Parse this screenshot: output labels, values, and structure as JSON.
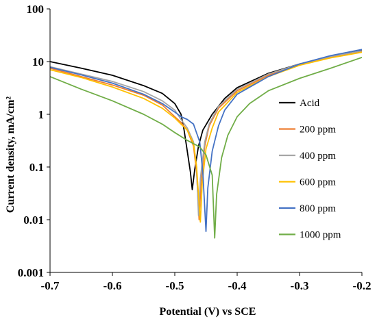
{
  "chart_data": {
    "type": "line",
    "title": "",
    "xlabel": "Potential (V) vs SCE",
    "ylabel": "Current  density, mA/cm²",
    "x_scale": "linear",
    "y_scale": "log",
    "xlim": [
      -0.7,
      -0.2
    ],
    "ylim": [
      0.001,
      100
    ],
    "x_ticks": [
      "-0.7",
      "-0.6",
      "-0.5",
      "-0.4",
      "-0.3",
      "-0.2"
    ],
    "y_ticks": [
      "0.001",
      "0.01",
      "0.1",
      "1",
      "10",
      "100"
    ],
    "grid": false,
    "legend_position": "right",
    "series": [
      {
        "name": "Acid",
        "color": "#000000",
        "points": [
          [
            -0.7,
            10
          ],
          [
            -0.65,
            7.5
          ],
          [
            -0.6,
            5.5
          ],
          [
            -0.55,
            3.5
          ],
          [
            -0.52,
            2.5
          ],
          [
            -0.5,
            1.6
          ],
          [
            -0.49,
            1.0
          ],
          [
            -0.485,
            0.5
          ],
          [
            -0.48,
            0.2
          ],
          [
            -0.475,
            0.08
          ],
          [
            -0.472,
            0.037
          ],
          [
            -0.468,
            0.09
          ],
          [
            -0.462,
            0.25
          ],
          [
            -0.455,
            0.5
          ],
          [
            -0.44,
            1.0
          ],
          [
            -0.42,
            2.0
          ],
          [
            -0.4,
            3.2
          ],
          [
            -0.35,
            6.0
          ],
          [
            -0.3,
            9.0
          ],
          [
            -0.25,
            12.5
          ],
          [
            -0.2,
            16.5
          ]
        ]
      },
      {
        "name": "200 ppm",
        "color": "#ed7d31",
        "points": [
          [
            -0.7,
            7.5
          ],
          [
            -0.65,
            5.2
          ],
          [
            -0.6,
            3.6
          ],
          [
            -0.55,
            2.3
          ],
          [
            -0.52,
            1.5
          ],
          [
            -0.5,
            0.9
          ],
          [
            -0.49,
            0.7
          ],
          [
            -0.48,
            0.5
          ],
          [
            -0.47,
            0.25
          ],
          [
            -0.465,
            0.08
          ],
          [
            -0.461,
            0.01
          ],
          [
            -0.458,
            0.05
          ],
          [
            -0.452,
            0.25
          ],
          [
            -0.445,
            0.6
          ],
          [
            -0.43,
            1.3
          ],
          [
            -0.4,
            2.8
          ],
          [
            -0.35,
            5.5
          ],
          [
            -0.3,
            8.8
          ],
          [
            -0.25,
            12
          ],
          [
            -0.2,
            15.5
          ]
        ]
      },
      {
        "name": "400 ppm",
        "color": "#a5a5a5",
        "points": [
          [
            -0.7,
            8
          ],
          [
            -0.65,
            5.8
          ],
          [
            -0.6,
            4.2
          ],
          [
            -0.55,
            2.7
          ],
          [
            -0.52,
            1.8
          ],
          [
            -0.5,
            1.2
          ],
          [
            -0.49,
            0.8
          ],
          [
            -0.48,
            0.55
          ],
          [
            -0.47,
            0.3
          ],
          [
            -0.465,
            0.1
          ],
          [
            -0.462,
            0.012
          ],
          [
            -0.459,
            0.06
          ],
          [
            -0.452,
            0.3
          ],
          [
            -0.445,
            0.65
          ],
          [
            -0.43,
            1.4
          ],
          [
            -0.4,
            3.0
          ],
          [
            -0.35,
            5.8
          ],
          [
            -0.3,
            9.0
          ],
          [
            -0.25,
            12.5
          ],
          [
            -0.2,
            16
          ]
        ]
      },
      {
        "name": "600 ppm",
        "color": "#ffc000",
        "points": [
          [
            -0.7,
            7
          ],
          [
            -0.65,
            5.0
          ],
          [
            -0.6,
            3.3
          ],
          [
            -0.55,
            2.0
          ],
          [
            -0.52,
            1.3
          ],
          [
            -0.5,
            0.85
          ],
          [
            -0.49,
            0.65
          ],
          [
            -0.48,
            0.5
          ],
          [
            -0.47,
            0.28
          ],
          [
            -0.465,
            0.1
          ],
          [
            -0.459,
            0.009
          ],
          [
            -0.456,
            0.05
          ],
          [
            -0.45,
            0.22
          ],
          [
            -0.44,
            0.55
          ],
          [
            -0.43,
            1.1
          ],
          [
            -0.4,
            2.6
          ],
          [
            -0.35,
            5.2
          ],
          [
            -0.3,
            8.5
          ],
          [
            -0.25,
            11.8
          ],
          [
            -0.2,
            15
          ]
        ]
      },
      {
        "name": "800 ppm",
        "color": "#4472c4",
        "points": [
          [
            -0.7,
            7.8
          ],
          [
            -0.65,
            5.6
          ],
          [
            -0.6,
            3.9
          ],
          [
            -0.55,
            2.4
          ],
          [
            -0.52,
            1.6
          ],
          [
            -0.5,
            1.1
          ],
          [
            -0.49,
            0.9
          ],
          [
            -0.48,
            0.8
          ],
          [
            -0.47,
            0.65
          ],
          [
            -0.46,
            0.3
          ],
          [
            -0.455,
            0.08
          ],
          [
            -0.45,
            0.006
          ],
          [
            -0.447,
            0.04
          ],
          [
            -0.44,
            0.2
          ],
          [
            -0.43,
            0.6
          ],
          [
            -0.42,
            1.2
          ],
          [
            -0.4,
            2.4
          ],
          [
            -0.35,
            5.2
          ],
          [
            -0.3,
            9.0
          ],
          [
            -0.25,
            13
          ],
          [
            -0.2,
            17
          ]
        ]
      },
      {
        "name": "1000 ppm",
        "color": "#70ad47",
        "points": [
          [
            -0.7,
            5.2
          ],
          [
            -0.65,
            3.0
          ],
          [
            -0.6,
            1.8
          ],
          [
            -0.55,
            1.0
          ],
          [
            -0.52,
            0.65
          ],
          [
            -0.5,
            0.45
          ],
          [
            -0.48,
            0.32
          ],
          [
            -0.46,
            0.24
          ],
          [
            -0.45,
            0.17
          ],
          [
            -0.44,
            0.07
          ],
          [
            -0.436,
            0.0045
          ],
          [
            -0.433,
            0.03
          ],
          [
            -0.425,
            0.15
          ],
          [
            -0.415,
            0.4
          ],
          [
            -0.4,
            0.9
          ],
          [
            -0.38,
            1.6
          ],
          [
            -0.35,
            2.8
          ],
          [
            -0.3,
            4.8
          ],
          [
            -0.25,
            7.5
          ],
          [
            -0.2,
            12
          ]
        ]
      }
    ]
  }
}
